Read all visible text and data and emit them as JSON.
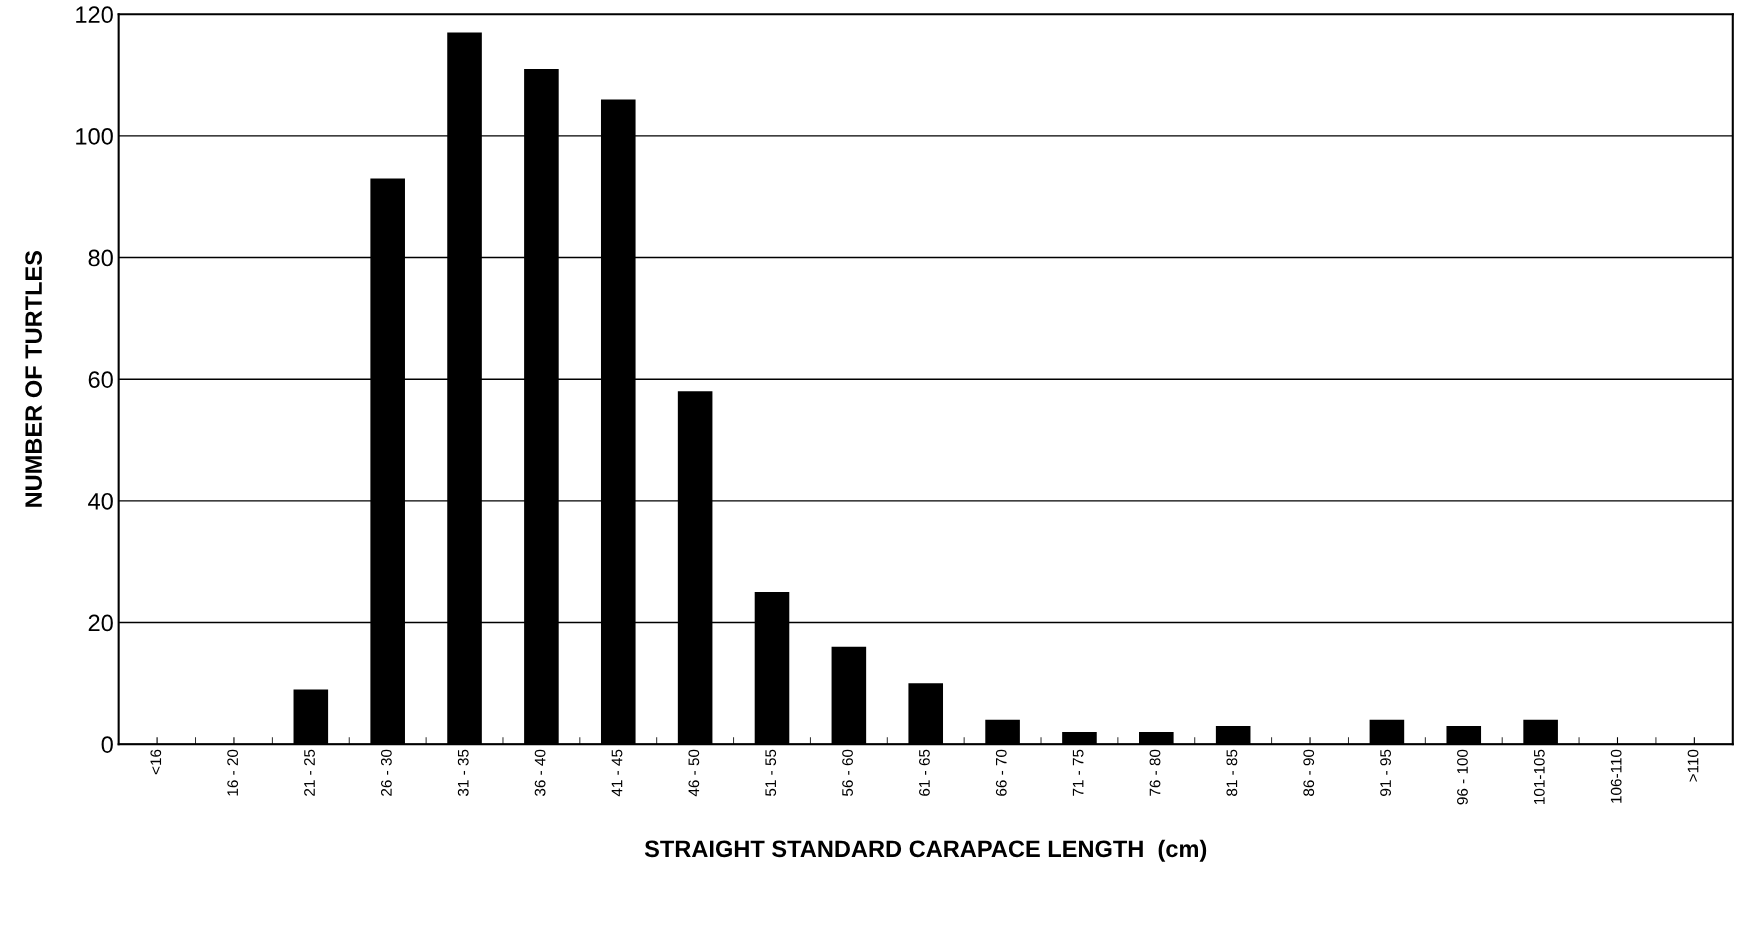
{
  "chart_data": {
    "type": "bar",
    "xlabel": "STRAIGHT STANDARD CARAPACE LENGTH  (cm)",
    "ylabel": "NUMBER OF TURTLES",
    "categories": [
      "<16",
      "16 - 20",
      "21 - 25",
      "26 - 30",
      "31 - 35",
      "36 - 40",
      "41 - 45",
      "46 - 50",
      "51 - 55",
      "56 - 60",
      "61 - 65",
      "66 - 70",
      "71 - 75",
      "76 - 80",
      "81 - 85",
      "86 - 90",
      "91 - 95",
      "96 - 100",
      "101-105",
      "106-110",
      ">110"
    ],
    "values": [
      0,
      0,
      9,
      93,
      117,
      111,
      106,
      58,
      25,
      16,
      10,
      4,
      2,
      2,
      3,
      0,
      4,
      3,
      4,
      0,
      0
    ],
    "color": "#000000",
    "ylim": [
      0,
      120
    ],
    "yticks": [
      0,
      20,
      40,
      60,
      80,
      100,
      120
    ],
    "grid": "y",
    "legend": false
  }
}
